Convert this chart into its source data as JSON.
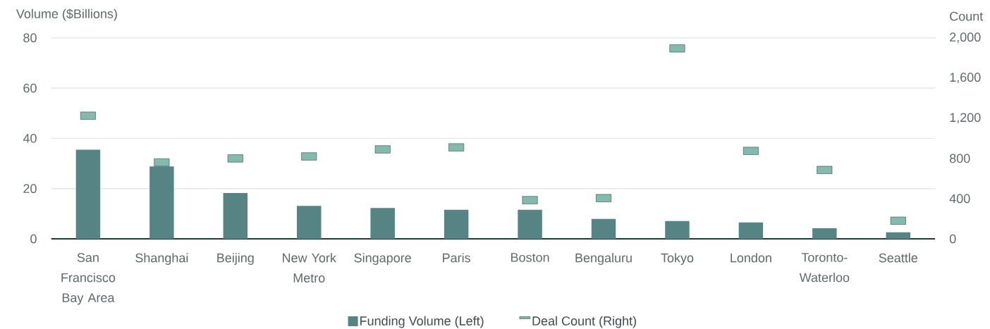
{
  "chart_data": {
    "type": "bar",
    "categories": [
      "San Francisco Bay Area",
      "Shanghai",
      "Beijing",
      "New York Metro",
      "Singapore",
      "Paris",
      "Boston",
      "Bengaluru",
      "Tokyo",
      "London",
      "Toronto-Waterloo",
      "Seattle"
    ],
    "series": [
      {
        "name": "Funding Volume (Left)",
        "color": "#568383",
        "values": [
          35.5,
          28.8,
          18.2,
          13.1,
          12.3,
          11.6,
          11.6,
          7.9,
          7.1,
          6.5,
          4.2,
          2.6
        ]
      },
      {
        "name": "Deal Count (Right)",
        "type": "scatter",
        "marker": "square",
        "axis": "y2",
        "color": "#82bbad",
        "values": [
          1225,
          760,
          800,
          820,
          890,
          910,
          385,
          405,
          1895,
          875,
          685,
          180
        ]
      }
    ],
    "ylabel": "Volume ($Billions)",
    "y2label": "Count",
    "ylim": [
      0,
      80
    ],
    "yticks": [
      0,
      20,
      40,
      60,
      80
    ],
    "y2lim": [
      0,
      2000
    ],
    "y2ticks": [
      0,
      {
        "value": 400,
        "label": "400"
      },
      {
        "value": 800,
        "label": "800"
      },
      {
        "value": 1200,
        "label": "1,200"
      },
      {
        "value": 1600,
        "label": "1,600"
      },
      {
        "value": 2000,
        "label": "2,000"
      }
    ],
    "grid": "y",
    "legend": "bottom"
  }
}
